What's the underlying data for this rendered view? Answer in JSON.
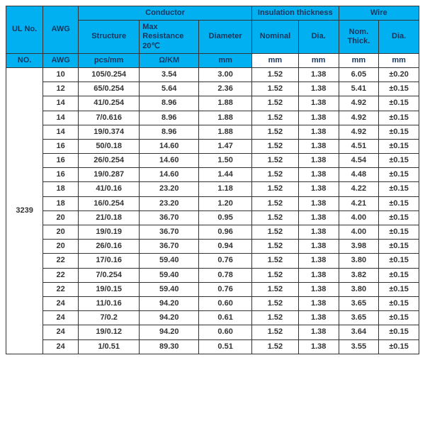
{
  "colors": {
    "header_bg": "#00b0f0",
    "header_text": "#17365d",
    "border": "#333333",
    "cell_text": "#333333",
    "bg": "#ffffff"
  },
  "header": {
    "ul_no": "UL No.",
    "awg": "AWG",
    "conductor": "Conductor",
    "insulation_thickness": "Insulation thickness",
    "wire": "Wire",
    "structure": "Structure",
    "max_resistance": "Max Resistance 20℃",
    "diameter": "Diameter",
    "nominal": "Nominal",
    "dia": "Dia.",
    "nom_thick": "Nom. Thick.",
    "dia2": "Dia."
  },
  "units": {
    "no": "NO.",
    "awg": "AWG",
    "structure": "pcs/mm",
    "resistance": "Ω/KM",
    "diameter": "mm",
    "nominal": "mm",
    "dia": "mm",
    "thick": "mm",
    "dia2": "mm"
  },
  "ul_value": "3239",
  "rows": [
    {
      "awg": "10",
      "structure": "105/0.254",
      "res": "3.54",
      "diam": "3.00",
      "nom": "1.52",
      "dia": "1.38",
      "thick": "6.05",
      "dia2": "±0.20"
    },
    {
      "awg": "12",
      "structure": "65/0.254",
      "res": "5.64",
      "diam": "2.36",
      "nom": "1.52",
      "dia": "1.38",
      "thick": "5.41",
      "dia2": "±0.15"
    },
    {
      "awg": "14",
      "structure": "41/0.254",
      "res": "8.96",
      "diam": "1.88",
      "nom": "1.52",
      "dia": "1.38",
      "thick": "4.92",
      "dia2": "±0.15"
    },
    {
      "awg": "14",
      "structure": "7/0.616",
      "res": "8.96",
      "diam": "1.88",
      "nom": "1.52",
      "dia": "1.38",
      "thick": "4.92",
      "dia2": "±0.15"
    },
    {
      "awg": "14",
      "structure": "19/0.374",
      "res": "8.96",
      "diam": "1.88",
      "nom": "1.52",
      "dia": "1.38",
      "thick": "4.92",
      "dia2": "±0.15"
    },
    {
      "awg": "16",
      "structure": "50/0.18",
      "res": "14.60",
      "diam": "1.47",
      "nom": "1.52",
      "dia": "1.38",
      "thick": "4.51",
      "dia2": "±0.15"
    },
    {
      "awg": "16",
      "structure": "26/0.254",
      "res": "14.60",
      "diam": "1.50",
      "nom": "1.52",
      "dia": "1.38",
      "thick": "4.54",
      "dia2": "±0.15"
    },
    {
      "awg": "16",
      "structure": "19/0.287",
      "res": "14.60",
      "diam": "1.44",
      "nom": "1.52",
      "dia": "1.38",
      "thick": "4.48",
      "dia2": "±0.15"
    },
    {
      "awg": "18",
      "structure": "41/0.16",
      "res": "23.20",
      "diam": "1.18",
      "nom": "1.52",
      "dia": "1.38",
      "thick": "4.22",
      "dia2": "±0.15"
    },
    {
      "awg": "18",
      "structure": "16/0.254",
      "res": "23.20",
      "diam": "1.20",
      "nom": "1.52",
      "dia": "1.38",
      "thick": "4.21",
      "dia2": "±0.15"
    },
    {
      "awg": "20",
      "structure": "21/0.18",
      "res": "36.70",
      "diam": "0.95",
      "nom": "1.52",
      "dia": "1.38",
      "thick": "4.00",
      "dia2": "±0.15"
    },
    {
      "awg": "20",
      "structure": "19/0.19",
      "res": "36.70",
      "diam": "0.96",
      "nom": "1.52",
      "dia": "1.38",
      "thick": "4.00",
      "dia2": "±0.15"
    },
    {
      "awg": "20",
      "structure": "26/0.16",
      "res": "36.70",
      "diam": "0.94",
      "nom": "1.52",
      "dia": "1.38",
      "thick": "3.98",
      "dia2": "±0.15"
    },
    {
      "awg": "22",
      "structure": "17/0.16",
      "res": "59.40",
      "diam": "0.76",
      "nom": "1.52",
      "dia": "1.38",
      "thick": "3.80",
      "dia2": "±0.15"
    },
    {
      "awg": "22",
      "structure": "7/0.254",
      "res": "59.40",
      "diam": "0.78",
      "nom": "1.52",
      "dia": "1.38",
      "thick": "3.82",
      "dia2": "±0.15"
    },
    {
      "awg": "22",
      "structure": "19/0.15",
      "res": "59.40",
      "diam": "0.76",
      "nom": "1.52",
      "dia": "1.38",
      "thick": "3.80",
      "dia2": "±0.15"
    },
    {
      "awg": "24",
      "structure": "11/0.16",
      "res": "94.20",
      "diam": "0.60",
      "nom": "1.52",
      "dia": "1.38",
      "thick": "3.65",
      "dia2": "±0.15"
    },
    {
      "awg": "24",
      "structure": "7/0.2",
      "res": "94.20",
      "diam": "0.61",
      "nom": "1.52",
      "dia": "1.38",
      "thick": "3.65",
      "dia2": "±0.15"
    },
    {
      "awg": "24",
      "structure": "19/0.12",
      "res": "94.20",
      "diam": "0.60",
      "nom": "1.52",
      "dia": "1.38",
      "thick": "3.64",
      "dia2": "±0.15"
    },
    {
      "awg": "24",
      "structure": "1/0.51",
      "res": "89.30",
      "diam": "0.51",
      "nom": "1.52",
      "dia": "1.38",
      "thick": "3.55",
      "dia2": "±0.15"
    }
  ]
}
